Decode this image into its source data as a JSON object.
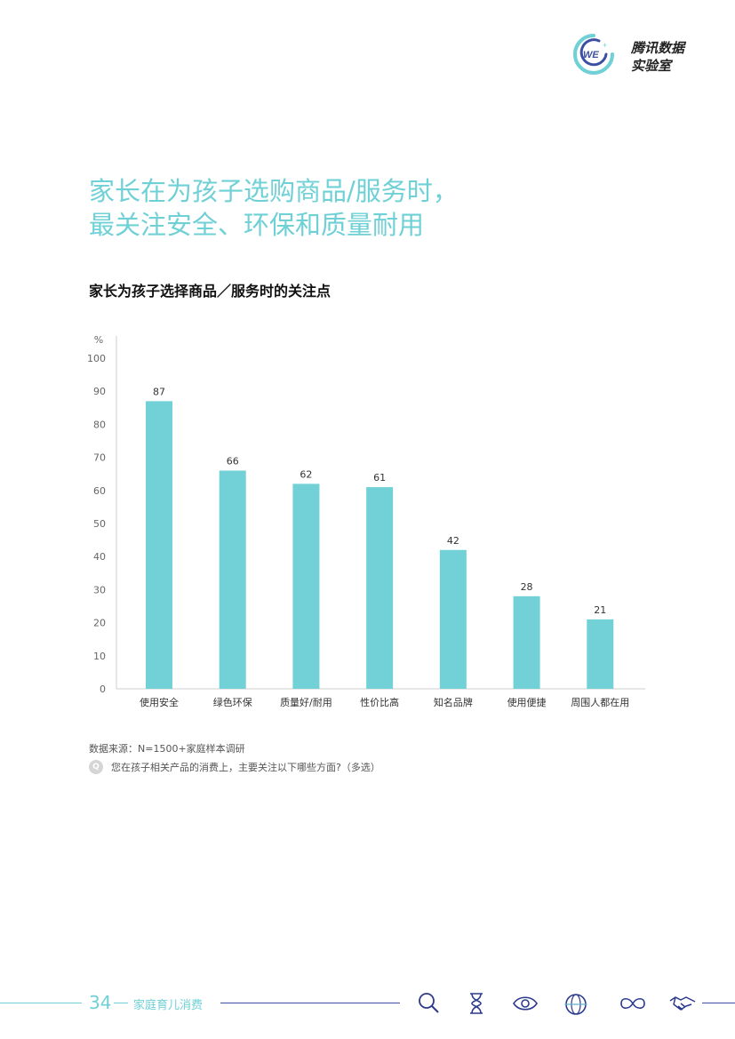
{
  "brand": {
    "line1": "腾讯数据",
    "line2": "实验室",
    "badge": "WE"
  },
  "headline": {
    "line1": "家长在为孩子选购商品/服务时，",
    "line2": "最关注安全、环保和质量耐用"
  },
  "chart_title": "家长为孩子选择商品／服务时的关注点",
  "chart_data": {
    "type": "bar",
    "title": "家长为孩子选择商品／服务时的关注点",
    "ylabel": "%",
    "xlabel": "",
    "ylim": [
      0,
      100
    ],
    "yticks": [
      "0",
      "10",
      "20",
      "30",
      "40",
      "50",
      "60",
      "70",
      "80",
      "90",
      "100"
    ],
    "categories": [
      "使用安全",
      "绿色环保",
      "质量好/耐用",
      "性价比高",
      "知名品牌",
      "使用便捷",
      "周围人都在用"
    ],
    "values": [
      87,
      66,
      62,
      61,
      42,
      28,
      21
    ],
    "data_labels": [
      "87",
      "66",
      "62",
      "61",
      "42",
      "28",
      "21"
    ],
    "grid": false,
    "legend": "none",
    "bar_color": "#72d1d6"
  },
  "source": "数据来源：N=1500+家庭样本调研",
  "question": {
    "badge": "Q",
    "text": "您在孩子相关产品的消费上，主要关注以下哪些方面?（多选）"
  },
  "footer": {
    "page_number": "34",
    "label": "家庭育儿消费"
  },
  "colors": {
    "accent": "#6fd0d6",
    "navy": "#2b3a8c",
    "bar": "#72d1d6"
  },
  "footer_icons": [
    "search-icon",
    "hourglass-icon",
    "eye-icon",
    "globe-icon",
    "infinity-icon",
    "handshake-icon"
  ]
}
